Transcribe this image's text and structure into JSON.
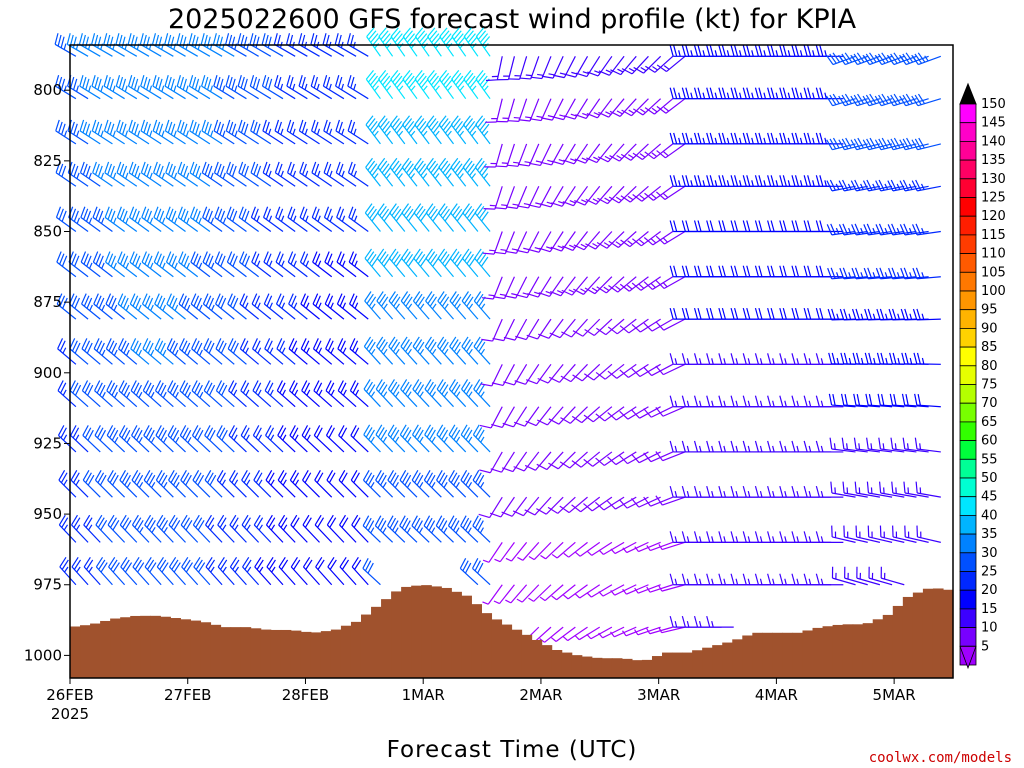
{
  "chart_data": {
    "type": "wind-barb-timeseries",
    "title": "2025022600 GFS forecast wind profile (kt) for KPIA",
    "xlabel": "Forecast Time (UTC)",
    "x_ticks": [
      {
        "label": "26FEB",
        "sublabel": "2025",
        "day": 0
      },
      {
        "label": "27FEB",
        "sublabel": "",
        "day": 1
      },
      {
        "label": "28FEB",
        "sublabel": "",
        "day": 2
      },
      {
        "label": "1MAR",
        "sublabel": "",
        "day": 3
      },
      {
        "label": "2MAR",
        "sublabel": "",
        "day": 4
      },
      {
        "label": "3MAR",
        "sublabel": "",
        "day": 5
      },
      {
        "label": "4MAR",
        "sublabel": "",
        "day": 6
      },
      {
        "label": "5MAR",
        "sublabel": "",
        "day": 7
      }
    ],
    "x_range_days": [
      0,
      7.5
    ],
    "y_ticks": [
      {
        "label": "800",
        "value": 800
      },
      {
        "label": "825",
        "value": 825
      },
      {
        "label": "850",
        "value": 850
      },
      {
        "label": "875",
        "value": 875
      },
      {
        "label": "900",
        "value": 900
      },
      {
        "label": "925",
        "value": 925
      },
      {
        "label": "950",
        "value": 950
      },
      {
        "label": "975",
        "value": 975
      },
      {
        "label": "1000",
        "value": 1000
      }
    ],
    "y_range_hpa": [
      784,
      1008
    ],
    "y_reversed": true,
    "barb_levels_hpa": [
      788,
      803,
      819,
      834,
      850,
      866,
      881,
      897,
      912,
      928,
      944,
      960,
      975,
      990
    ],
    "surface_pressure_hpa": [
      990,
      989,
      987,
      986,
      986,
      987,
      988,
      990,
      990,
      991,
      991,
      992,
      991,
      988,
      982,
      976,
      975,
      976,
      979,
      986,
      990,
      994,
      998,
      1000,
      1001,
      1001,
      1002,
      999,
      999,
      997,
      995,
      992,
      992,
      992,
      990,
      989,
      989,
      986,
      979,
      976,
      977
    ],
    "colorbar": {
      "labels": [
        "150",
        "145",
        "140",
        "135",
        "130",
        "125",
        "120",
        "115",
        "110",
        "105",
        "100",
        "95",
        "90",
        "85",
        "80",
        "75",
        "70",
        "65",
        "60",
        "55",
        "50",
        "45",
        "40",
        "35",
        "30",
        "25",
        "20",
        "15",
        "10",
        "5"
      ],
      "colors": [
        "#ff00ff",
        "#ff00c8",
        "#ff0096",
        "#ff0064",
        "#ff0032",
        "#ff0000",
        "#ff1e00",
        "#ff3c00",
        "#ff5a00",
        "#ff7800",
        "#ff9600",
        "#ffb400",
        "#ffd200",
        "#ffff00",
        "#e6ff00",
        "#b4ff00",
        "#78ff00",
        "#32ff00",
        "#00ff3c",
        "#00ff96",
        "#00ffd2",
        "#00e6ff",
        "#00b4ff",
        "#0082ff",
        "#0050ff",
        "#0028ff",
        "#0000ff",
        "#3c00ff",
        "#7800ff",
        "#a000ff"
      ]
    },
    "credit": "coolwx.com/models",
    "colors": {
      "terrain": "#a0522d",
      "credit": "#cc0000"
    }
  }
}
